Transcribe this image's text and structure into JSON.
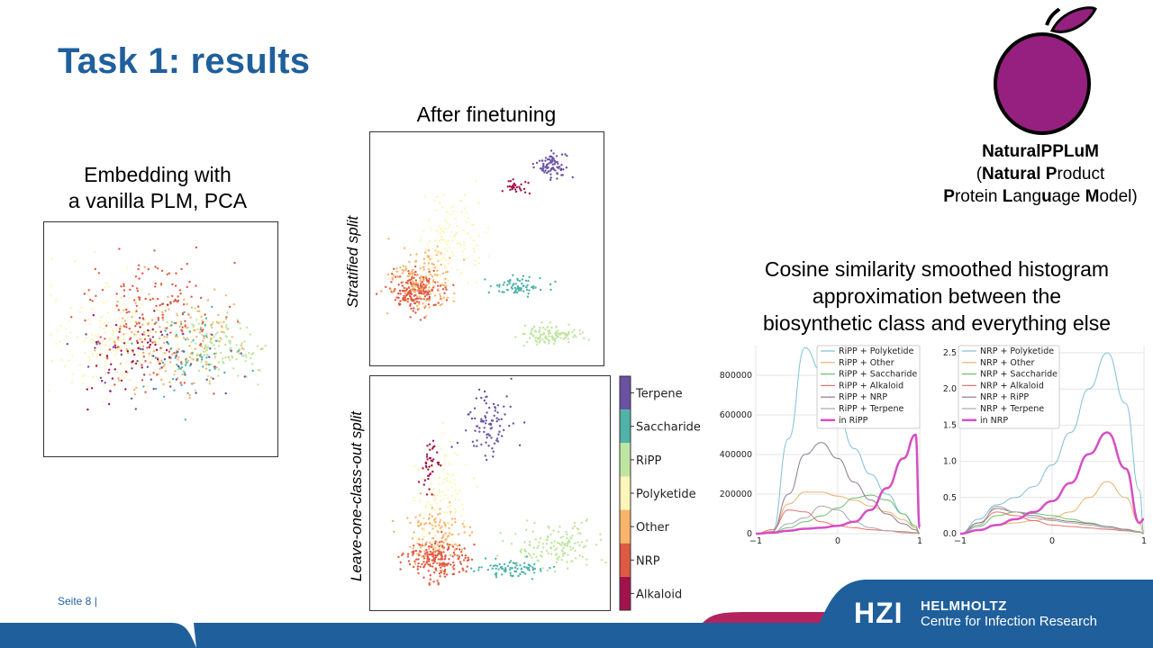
{
  "title": "Task 1: results",
  "captions": {
    "left_line1": "Embedding with",
    "left_line2": "a vanilla PLM, PCA",
    "middle": "After finetuning",
    "right_line1": "Cosine similarity smoothed histogram",
    "right_line2": "approximation between the",
    "right_line3": "biosynthetic class and everything else"
  },
  "side_labels": {
    "stratified": "Stratified split",
    "loco": "Leave-one-class-out split"
  },
  "colorbar": {
    "labels": [
      "Terpene",
      "Saccharide",
      "RiPP",
      "Polyketide",
      "Other",
      "NRP",
      "Alkaloid"
    ],
    "colors": [
      "#6a52a3",
      "#4fb3a8",
      "#bfe6a0",
      "#fcf6b8",
      "#f8b46a",
      "#e05a43",
      "#a3134b"
    ]
  },
  "brand": {
    "name": "NaturalPPLuM",
    "line2_pre": "(",
    "line2_b1": "Natural",
    "line2_mid": " ",
    "line2_b2": "P",
    "line2_post": "roduct",
    "line3_b1": "P",
    "line3_t1": "rotein ",
    "line3_b2": "L",
    "line3_t2": "ang",
    "line3_b3": "u",
    "line3_t3": "age ",
    "line3_b4": "M",
    "line3_t4": "odel)",
    "apple_color": "#96207f"
  },
  "footer": {
    "page": "Seite 8 |",
    "logo": "HZI",
    "org1": "HELMHOLTZ",
    "org2": "Centre for Infection Research",
    "bar_color": "#1f5f9c",
    "accent_color": "#b3245e"
  },
  "chart_data": [
    {
      "type": "line",
      "title": "",
      "x_ticks": [
        "−1",
        "0",
        "1"
      ],
      "y_ticks": [
        "0",
        "200000",
        "400000",
        "600000",
        "800000"
      ],
      "xlim": [
        -1,
        1
      ],
      "ylim": [
        0,
        950000
      ],
      "x": [
        -1,
        -0.8,
        -0.6,
        -0.4,
        -0.2,
        0,
        0.2,
        0.4,
        0.6,
        0.8,
        0.95,
        1
      ],
      "series": [
        {
          "name": "RiPP + Polyketide",
          "color": "#7fbfd8",
          "values": [
            0,
            5000,
            480000,
            940000,
            820000,
            600000,
            430000,
            300000,
            200000,
            100000,
            30000,
            0
          ]
        },
        {
          "name": "RiPP + Other",
          "color": "#e8b26a",
          "values": [
            0,
            20000,
            150000,
            210000,
            210000,
            190000,
            170000,
            140000,
            110000,
            70000,
            30000,
            0
          ]
        },
        {
          "name": "RiPP + Saccharide",
          "color": "#6cc070",
          "values": [
            0,
            5000,
            30000,
            60000,
            90000,
            130000,
            180000,
            195000,
            170000,
            100000,
            40000,
            0
          ]
        },
        {
          "name": "RiPP + Alkaloid",
          "color": "#e8706a",
          "values": [
            0,
            20000,
            120000,
            110000,
            60000,
            40000,
            30000,
            20000,
            15000,
            10000,
            5000,
            0
          ]
        },
        {
          "name": "RiPP + NRP",
          "color": "#8c7b8c",
          "values": [
            0,
            10000,
            200000,
            400000,
            460000,
            380000,
            260000,
            170000,
            100000,
            50000,
            20000,
            0
          ]
        },
        {
          "name": "RiPP + Terpene",
          "color": "#a8a8a8",
          "values": [
            0,
            5000,
            50000,
            80000,
            140000,
            120000,
            60000,
            30000,
            15000,
            5000,
            2000,
            0
          ]
        },
        {
          "name": "in RiPP",
          "color": "#d64fc4",
          "values": [
            0,
            5000,
            15000,
            25000,
            30000,
            40000,
            60000,
            120000,
            230000,
            380000,
            500000,
            30000
          ]
        }
      ]
    },
    {
      "type": "line",
      "title": "",
      "x_ticks": [
        "−1",
        "0",
        "1"
      ],
      "y_ticks": [
        "0.0",
        "0.5",
        "1.0",
        "1.5",
        "2.0",
        "2.5"
      ],
      "xlim": [
        -1,
        1
      ],
      "ylim": [
        0,
        2.6
      ],
      "x": [
        -1,
        -0.8,
        -0.6,
        -0.4,
        -0.2,
        0,
        0.2,
        0.4,
        0.6,
        0.8,
        0.95,
        1
      ],
      "series": [
        {
          "name": "NRP + Polyketide",
          "color": "#7fbfd8",
          "values": [
            0,
            0.2,
            0.4,
            0.5,
            0.65,
            0.95,
            1.4,
            2.0,
            2.5,
            1.8,
            0.6,
            0
          ]
        },
        {
          "name": "NRP + Other",
          "color": "#e8b26a",
          "values": [
            0,
            0.05,
            0.12,
            0.15,
            0.18,
            0.22,
            0.3,
            0.5,
            0.72,
            0.5,
            0.15,
            0
          ]
        },
        {
          "name": "NRP + Saccharide",
          "color": "#6cc070",
          "values": [
            0,
            0.1,
            0.25,
            0.3,
            0.28,
            0.25,
            0.2,
            0.15,
            0.1,
            0.06,
            0.03,
            0
          ]
        },
        {
          "name": "NRP + Alkaloid",
          "color": "#e8706a",
          "values": [
            0,
            0.15,
            0.3,
            0.25,
            0.18,
            0.12,
            0.1,
            0.08,
            0.06,
            0.04,
            0.02,
            0
          ]
        },
        {
          "name": "NRP + RiPP",
          "color": "#8c7b8c",
          "values": [
            0,
            0.15,
            0.35,
            0.3,
            0.25,
            0.2,
            0.17,
            0.14,
            0.1,
            0.06,
            0.02,
            0
          ]
        },
        {
          "name": "NRP + Terpene",
          "color": "#a8a8a8",
          "values": [
            0,
            0.12,
            0.38,
            0.3,
            0.22,
            0.18,
            0.15,
            0.12,
            0.08,
            0.05,
            0.02,
            0
          ]
        },
        {
          "name": "in NRP",
          "color": "#d64fc4",
          "values": [
            0,
            0.05,
            0.12,
            0.2,
            0.3,
            0.45,
            0.7,
            1.1,
            1.4,
            0.9,
            0.15,
            0.2
          ]
        }
      ]
    }
  ]
}
